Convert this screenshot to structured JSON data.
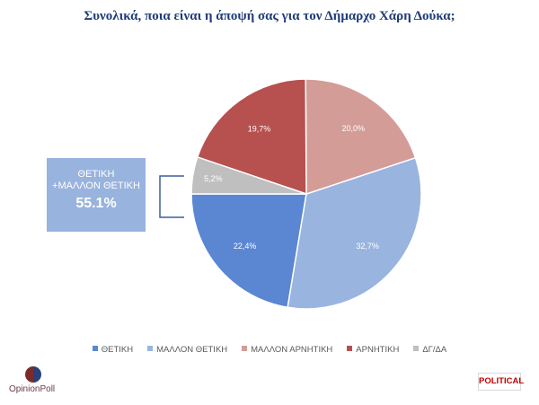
{
  "chart_data": {
    "type": "pie",
    "title": "Συνολικά, ποια είναι η άποψή σας για τον Δήμαρχο Χάρη Δούκα;",
    "categories": [
      "ΘΕΤΙΚΗ",
      "ΜΑΛΛΟΝ ΘΕΤΙΚΗ",
      "ΜΑΛΛΟΝ ΑΡΝΗΤΙΚΗ",
      "ΑΡΝΗΤΙΚΗ",
      "ΔΓ/ΔΑ"
    ],
    "values": [
      22.4,
      32.7,
      20.0,
      19.7,
      5.2
    ],
    "data_labels": [
      "22,4%",
      "32,7%",
      "20,0%",
      "19,7%",
      "5,2%"
    ],
    "colors": [
      "#5b86d2",
      "#9ab4e0",
      "#d49c97",
      "#b6514f",
      "#bfbfbf"
    ],
    "legend_position": "bottom"
  },
  "callout": {
    "line1": "ΘΕΤΙΚΗ",
    "line2": "+ΜΑΛΛΟΝ ΘΕΤΙΚΗ",
    "value": "55.1%"
  },
  "branding": {
    "left_logo": "OpinionPoll",
    "right_logo": "POLITICAL"
  }
}
